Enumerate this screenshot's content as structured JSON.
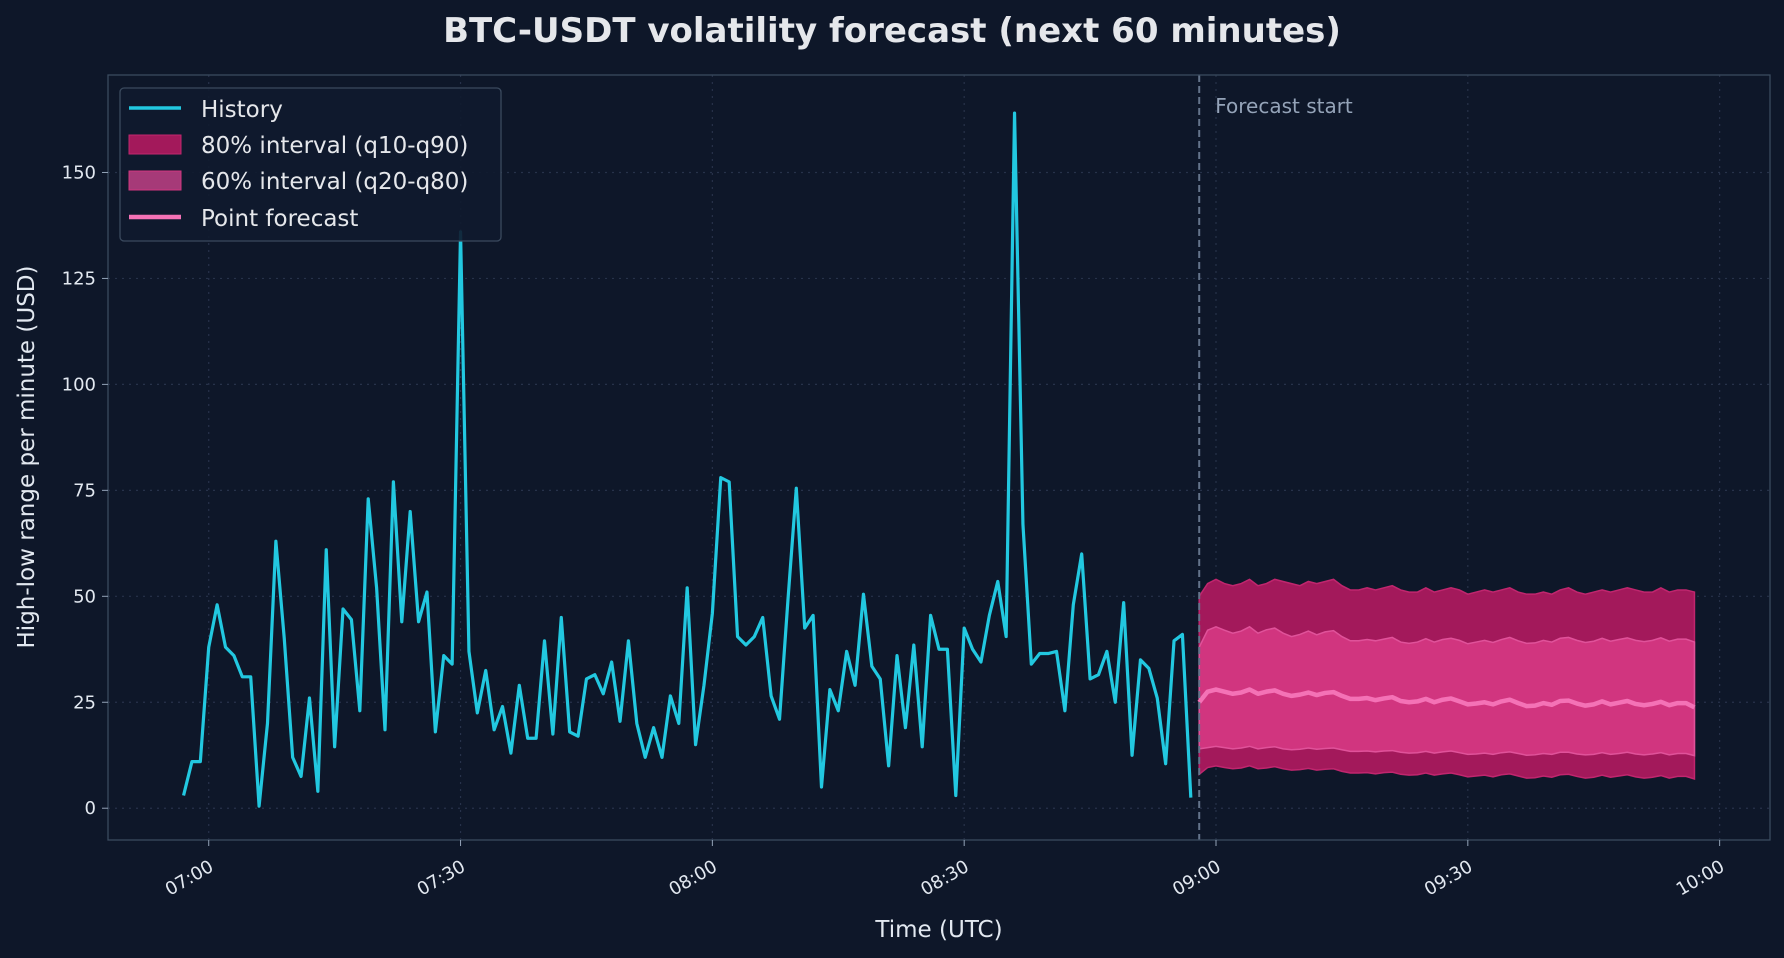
{
  "chart_data": {
    "type": "line",
    "title": "BTC-USDT volatility forecast (next 60 minutes)",
    "xlabel": "Time (UTC)",
    "ylabel": "High-low range per minute (USD)",
    "xlim": [
      "06:48",
      "10:06"
    ],
    "ylim": [
      -7.5,
      173
    ],
    "x_ticks": [
      "07:00",
      "07:30",
      "08:00",
      "08:30",
      "09:00",
      "09:30",
      "10:00"
    ],
    "y_ticks": [
      0,
      25,
      50,
      75,
      100,
      125,
      150
    ],
    "grid": true,
    "legend_position": "top-left",
    "annotation": {
      "text": "Forecast start",
      "x": "08:58"
    },
    "colors": {
      "background": "#0e1729",
      "history": "#22c8e0",
      "interval80": "#a3195b",
      "interval60": "#d1357f",
      "point_forecast": "#f472b6",
      "forecast_line": "#64748b",
      "grid": "#27324a",
      "text": "#e5e7eb"
    },
    "legend": [
      "History",
      "80% interval (q10-q90)",
      "60% interval (q20-q80)",
      "Point forecast"
    ],
    "history": {
      "name": "History",
      "start": "06:57",
      "step_minutes": 1,
      "values": [
        3,
        11,
        11,
        38,
        48,
        38,
        36,
        31,
        31,
        0.5,
        20,
        63,
        40,
        12,
        7.5,
        26,
        4,
        61,
        14.5,
        47,
        44.5,
        23,
        73,
        52,
        18.5,
        77,
        44,
        70,
        44,
        51,
        18,
        36,
        34,
        136,
        37,
        22.5,
        32.5,
        18.5,
        24,
        13,
        29,
        16.5,
        16.5,
        39.5,
        17.5,
        45,
        18,
        17,
        30.5,
        31.5,
        27,
        34.5,
        20.5,
        39.5,
        20,
        12,
        19,
        12,
        26.5,
        20,
        52,
        15,
        29,
        46,
        78,
        77,
        40.5,
        38.5,
        40.5,
        45,
        26.5,
        21,
        49,
        75.5,
        42.5,
        45.5,
        5,
        28,
        23,
        37,
        29,
        50.5,
        33.5,
        30.5,
        10,
        36,
        19,
        38.5,
        14.5,
        45.5,
        37.5,
        37.5,
        3,
        42.5,
        37.5,
        34.5,
        45.5,
        53.5,
        40.5,
        164,
        67,
        34,
        36.5,
        36.5,
        37,
        23,
        48,
        60,
        30.5,
        31.5,
        37,
        25,
        48.5,
        12.5,
        35,
        33,
        26,
        10.5,
        39.5,
        41,
        2.5
      ]
    },
    "forecast": {
      "start": "08:58",
      "step_minutes": 1,
      "point": [
        25,
        27.5,
        28,
        27.5,
        27,
        27.3,
        28,
        27,
        27.5,
        27.8,
        27,
        26.5,
        26.8,
        27.3,
        26.7,
        27.2,
        27.4,
        26.5,
        25.8,
        25.8,
        26,
        25.5,
        25.9,
        26.2,
        25.3,
        25,
        25.2,
        25.8,
        25,
        25.6,
        25.9,
        25.2,
        24.5,
        24.7,
        25,
        24.5,
        25.2,
        25.6,
        24.8,
        24.1,
        24.2,
        24.8,
        24.4,
        25.3,
        25.4,
        24.7,
        24.2,
        24.5,
        25.2,
        24.5,
        24.9,
        25.3,
        24.6,
        24.3,
        24.6,
        25.1,
        24.3,
        24.8,
        24.8,
        23.8
      ],
      "q90": [
        50,
        53,
        54,
        53,
        52.5,
        53,
        54,
        52.5,
        53,
        54,
        53.5,
        53,
        52.5,
        53.5,
        53,
        53.5,
        54,
        52.5,
        51.5,
        51.5,
        52,
        51.5,
        52,
        52.5,
        51.5,
        51,
        51,
        52,
        51,
        51.5,
        52,
        51.5,
        50.5,
        51,
        51.5,
        51,
        51.5,
        52,
        51,
        50.5,
        50.5,
        51,
        50.5,
        51.5,
        52,
        51,
        50.5,
        51,
        51.5,
        51,
        51.5,
        52,
        51.5,
        51,
        51,
        52,
        51,
        51.5,
        51.5,
        51
      ],
      "q80": [
        38,
        42,
        42.8,
        42,
        41.3,
        41.8,
        42.8,
        41.3,
        42.1,
        42.5,
        41.3,
        40.5,
        41,
        41.8,
        40.9,
        41.6,
        41.9,
        40.5,
        39.5,
        39.5,
        39.8,
        39.5,
        39.9,
        40.3,
        39.2,
        38.9,
        39.2,
        40,
        39.2,
        39.8,
        40.1,
        39.6,
        38.8,
        39.2,
        39.6,
        39.1,
        39.8,
        40.3,
        39.5,
        38.9,
        39,
        39.6,
        39.2,
        40.1,
        40.3,
        39.6,
        39.1,
        39.4,
        40.1,
        39.4,
        39.8,
        40.2,
        39.6,
        39.3,
        39.6,
        40.2,
        39.4,
        39.9,
        39.9,
        39.2
      ],
      "q20": [
        14,
        14.3,
        14.6,
        14.3,
        14,
        14.2,
        14.6,
        14,
        14.3,
        14.5,
        14,
        13.8,
        13.9,
        14.2,
        13.9,
        14.1,
        14.2,
        13.8,
        13.4,
        13.4,
        13.5,
        13.3,
        13.5,
        13.6,
        13.2,
        13,
        13.1,
        13.4,
        13,
        13.3,
        13.5,
        13.1,
        12.7,
        12.8,
        13,
        12.7,
        13.1,
        13.3,
        12.9,
        12.5,
        12.6,
        12.9,
        12.7,
        13.2,
        13.2,
        12.8,
        12.6,
        12.7,
        13.1,
        12.7,
        12.9,
        13.2,
        12.8,
        12.6,
        12.8,
        13.1,
        12.6,
        12.9,
        12.9,
        12.4
      ],
      "q10": [
        8,
        9.6,
        10,
        9.6,
        9.3,
        9.5,
        10,
        9.3,
        9.5,
        9.8,
        9.3,
        9,
        9.1,
        9.4,
        9,
        9.2,
        9.3,
        8.7,
        8.3,
        8.3,
        8.4,
        8.1,
        8.4,
        8.5,
        8,
        7.8,
        7.9,
        8.3,
        7.8,
        8.1,
        8.3,
        7.9,
        7.4,
        7.6,
        7.8,
        7.4,
        7.9,
        8.1,
        7.6,
        7.1,
        7.2,
        7.6,
        7.3,
        7.9,
        8,
        7.5,
        7.1,
        7.3,
        7.8,
        7.3,
        7.6,
        7.9,
        7.4,
        7.1,
        7.3,
        7.7,
        7.1,
        7.5,
        7.5,
        6.9
      ]
    }
  }
}
